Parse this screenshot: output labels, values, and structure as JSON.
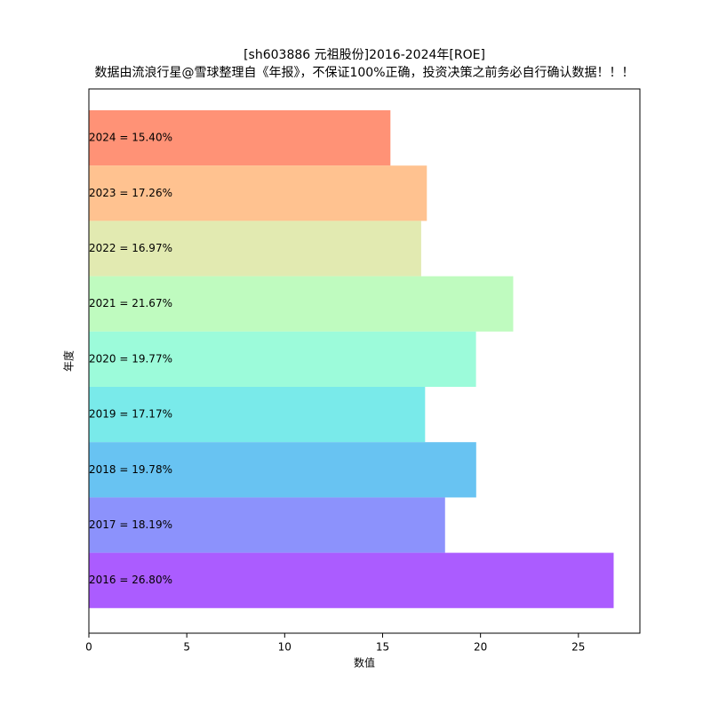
{
  "chart_data": {
    "type": "hbar",
    "title": "[sh603886 元祖股份]2016-2024年[ROE]",
    "subtitle": "数据由流浪行星@雪球整理自《年报》，不保证100%正确，投资决策之前务必自行确认数据！！！",
    "x_label": "数值",
    "y_label": "年度",
    "values": [
      15.4,
      17.26,
      16.97,
      21.67,
      19.77,
      17.17,
      19.78,
      18.19,
      26.8
    ],
    "value_labels": [
      "2024 = 15.40%",
      "2023 = 17.26%",
      "2022 = 16.97%",
      "2021 = 21.67%",
      "2020 = 19.77%",
      "2019 = 17.17%",
      "2018 = 19.78%",
      "2017 = 18.19%",
      "2016 = 26.80%"
    ],
    "colors": [
      "#ff7f5e",
      "#ffb77c",
      "#dde6a3",
      "#b4fab4",
      "#8bfad4",
      "#61e6e6",
      "#4db8f0",
      "#787ffc",
      "#9c40ff"
    ],
    "xlim": [
      0,
      28.14
    ],
    "xticks": [
      0,
      5,
      10,
      15,
      20,
      25
    ]
  }
}
